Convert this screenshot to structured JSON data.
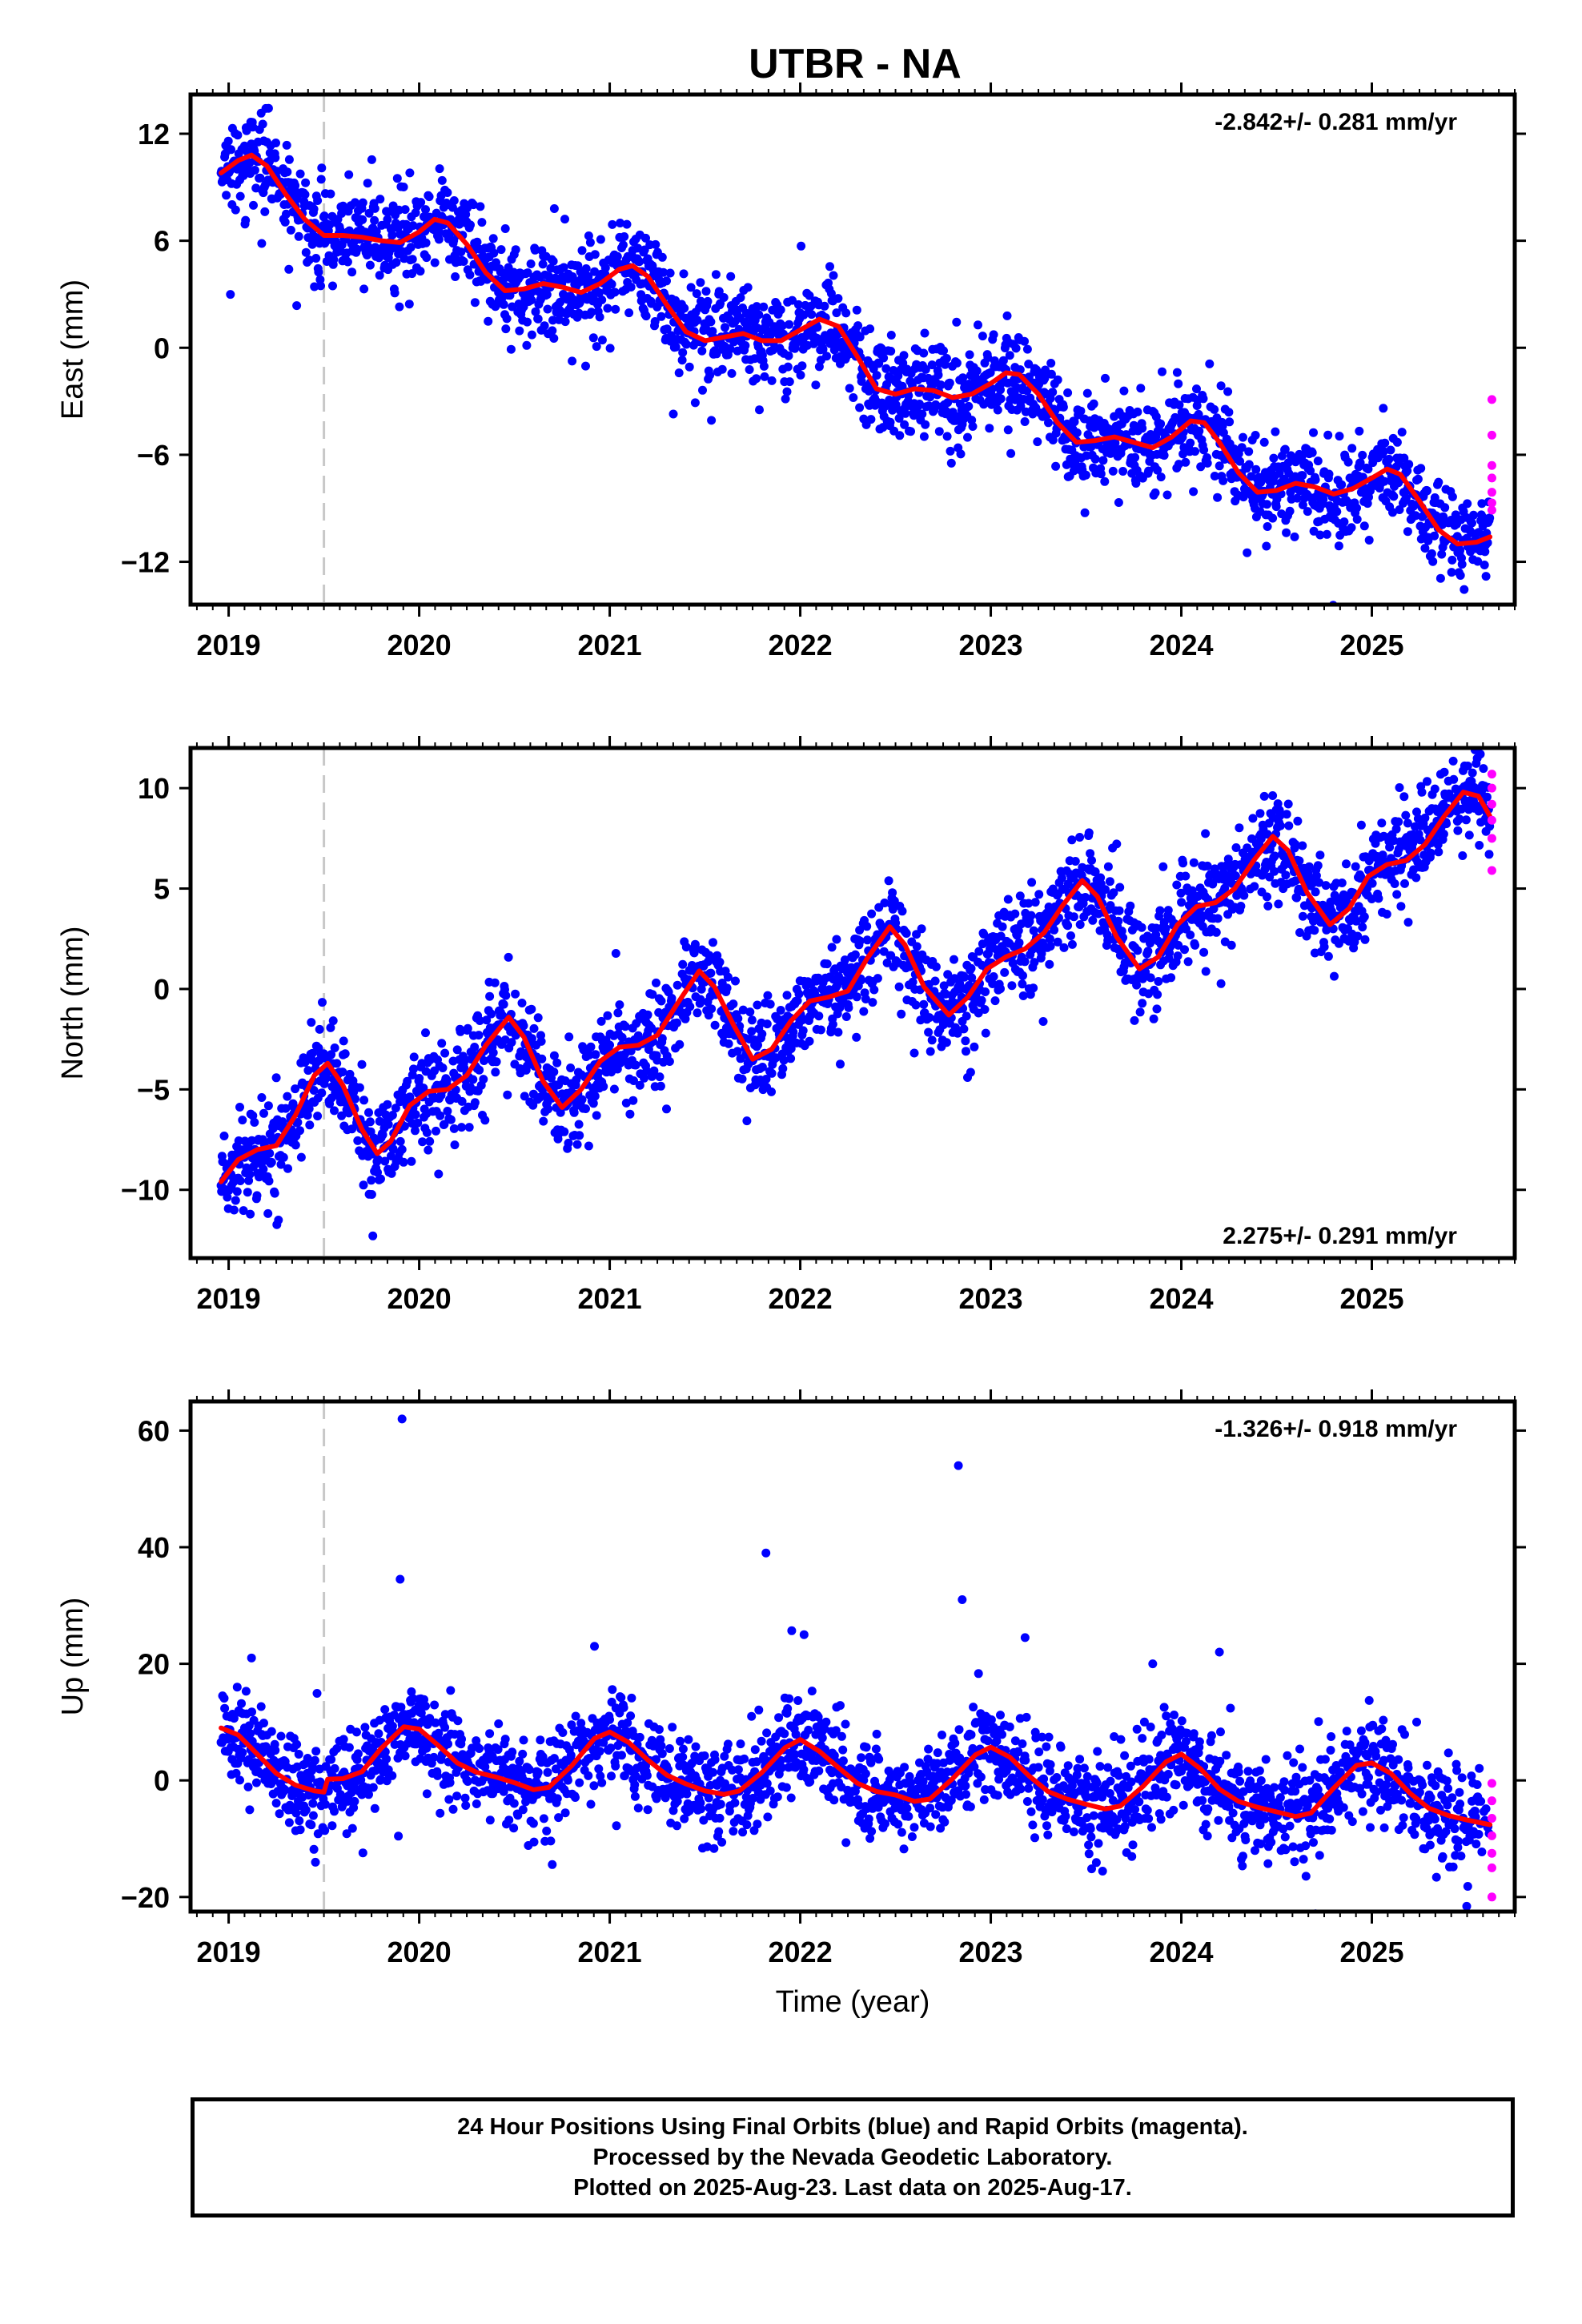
{
  "title": "UTBR - NA",
  "colors": {
    "final_orbits": "#0000ff",
    "rapid_orbits": "#ff00ff",
    "model_fit": "#ff0000",
    "reference_line": "#c8c8c8",
    "axes": "#000000"
  },
  "footer": {
    "line1": "24 Hour Positions Using Final Orbits (blue) and Rapid Orbits (magenta).",
    "line2": "Processed by the Nevada Geodetic Laboratory.",
    "line3": "Plotted on 2025-Aug-23. Last data on 2025-Aug-17."
  },
  "chart_data": [
    {
      "type": "scatter",
      "name": "East",
      "ylabel": "East (mm)",
      "xlabel": "",
      "rate_label": "-2.842+/- 0.281 mm/yr",
      "rate_position": "top-right",
      "xlim": [
        2018.8,
        2025.75
      ],
      "ylim": [
        -14.4,
        14.2
      ],
      "x_ticks": [
        2019,
        2020,
        2021,
        2022,
        2023,
        2024,
        2025
      ],
      "y_ticks": [
        -12,
        -6,
        0,
        6,
        12
      ],
      "y_tick_labels": [
        "−12",
        "−6",
        "0",
        "6",
        "12"
      ],
      "reference_line_x": 2019.5,
      "series": [
        {
          "name": "model fit",
          "kind": "line",
          "points": [
            [
              2018.96,
              9.8
            ],
            [
              2019.05,
              10.5
            ],
            [
              2019.12,
              10.8
            ],
            [
              2019.2,
              10.2
            ],
            [
              2019.3,
              8.6
            ],
            [
              2019.4,
              7.2
            ],
            [
              2019.5,
              6.3
            ],
            [
              2019.6,
              6.3
            ],
            [
              2019.7,
              6.2
            ],
            [
              2019.8,
              6.0
            ],
            [
              2019.9,
              5.9
            ],
            [
              2020.0,
              6.5
            ],
            [
              2020.08,
              7.2
            ],
            [
              2020.15,
              7.0
            ],
            [
              2020.25,
              5.8
            ],
            [
              2020.35,
              4.2
            ],
            [
              2020.45,
              3.2
            ],
            [
              2020.55,
              3.3
            ],
            [
              2020.65,
              3.6
            ],
            [
              2020.75,
              3.4
            ],
            [
              2020.85,
              3.1
            ],
            [
              2020.95,
              3.6
            ],
            [
              2021.05,
              4.4
            ],
            [
              2021.12,
              4.6
            ],
            [
              2021.2,
              4.0
            ],
            [
              2021.3,
              2.4
            ],
            [
              2021.4,
              0.9
            ],
            [
              2021.5,
              0.4
            ],
            [
              2021.6,
              0.6
            ],
            [
              2021.7,
              0.8
            ],
            [
              2021.8,
              0.4
            ],
            [
              2021.9,
              0.4
            ],
            [
              2022.0,
              1.0
            ],
            [
              2022.1,
              1.6
            ],
            [
              2022.2,
              1.2
            ],
            [
              2022.3,
              -0.5
            ],
            [
              2022.4,
              -2.3
            ],
            [
              2022.5,
              -2.6
            ],
            [
              2022.6,
              -2.3
            ],
            [
              2022.7,
              -2.4
            ],
            [
              2022.8,
              -2.8
            ],
            [
              2022.9,
              -2.6
            ],
            [
              2023.0,
              -2.0
            ],
            [
              2023.08,
              -1.4
            ],
            [
              2023.15,
              -1.5
            ],
            [
              2023.25,
              -2.6
            ],
            [
              2023.35,
              -4.2
            ],
            [
              2023.45,
              -5.3
            ],
            [
              2023.55,
              -5.2
            ],
            [
              2023.65,
              -5.0
            ],
            [
              2023.75,
              -5.3
            ],
            [
              2023.85,
              -5.6
            ],
            [
              2023.95,
              -5.0
            ],
            [
              2024.05,
              -4.1
            ],
            [
              2024.12,
              -4.2
            ],
            [
              2024.2,
              -5.3
            ],
            [
              2024.3,
              -7.0
            ],
            [
              2024.4,
              -8.1
            ],
            [
              2024.5,
              -8.0
            ],
            [
              2024.6,
              -7.6
            ],
            [
              2024.7,
              -7.8
            ],
            [
              2024.8,
              -8.2
            ],
            [
              2024.9,
              -7.9
            ],
            [
              2025.0,
              -7.3
            ],
            [
              2025.08,
              -6.8
            ],
            [
              2025.15,
              -7.1
            ],
            [
              2025.25,
              -8.6
            ],
            [
              2025.35,
              -10.2
            ],
            [
              2025.45,
              -11.0
            ],
            [
              2025.55,
              -10.9
            ],
            [
              2025.62,
              -10.6
            ]
          ]
        }
      ],
      "scatter_trend": {
        "description": "daily positions scattered around model fit",
        "x_start": 2018.96,
        "x_end": 2025.62,
        "scatter_sd_mm": 1.3
      },
      "rapid_points": [
        [
          2025.63,
          -2.9
        ],
        [
          2025.63,
          -4.9
        ],
        [
          2025.63,
          -6.6
        ],
        [
          2025.63,
          -7.3
        ],
        [
          2025.63,
          -8.1
        ],
        [
          2025.63,
          -8.7
        ],
        [
          2025.63,
          -9.1
        ]
      ]
    },
    {
      "type": "scatter",
      "name": "North",
      "ylabel": "North (mm)",
      "xlabel": "",
      "rate_label": "2.275+/- 0.291 mm/yr",
      "rate_position": "bottom-right",
      "xlim": [
        2018.8,
        2025.75
      ],
      "ylim": [
        -13.4,
        12.0
      ],
      "x_ticks": [
        2019,
        2020,
        2021,
        2022,
        2023,
        2024,
        2025
      ],
      "y_ticks": [
        -10,
        -5,
        0,
        5,
        10
      ],
      "y_tick_labels": [
        "−10",
        "−5",
        "0",
        "5",
        "10"
      ],
      "reference_line_x": 2019.5,
      "series": [
        {
          "name": "model fit",
          "kind": "line",
          "points": [
            [
              2018.96,
              -9.6
            ],
            [
              2019.05,
              -8.5
            ],
            [
              2019.15,
              -8.0
            ],
            [
              2019.25,
              -7.8
            ],
            [
              2019.35,
              -6.3
            ],
            [
              2019.45,
              -4.3
            ],
            [
              2019.52,
              -3.7
            ],
            [
              2019.6,
              -4.8
            ],
            [
              2019.7,
              -7.0
            ],
            [
              2019.78,
              -8.2
            ],
            [
              2019.85,
              -7.6
            ],
            [
              2019.95,
              -5.8
            ],
            [
              2020.05,
              -5.1
            ],
            [
              2020.15,
              -5.0
            ],
            [
              2020.25,
              -4.3
            ],
            [
              2020.35,
              -2.8
            ],
            [
              2020.47,
              -1.4
            ],
            [
              2020.55,
              -2.4
            ],
            [
              2020.65,
              -4.6
            ],
            [
              2020.75,
              -5.9
            ],
            [
              2020.85,
              -5.0
            ],
            [
              2020.95,
              -3.6
            ],
            [
              2021.05,
              -2.9
            ],
            [
              2021.15,
              -2.8
            ],
            [
              2021.25,
              -2.3
            ],
            [
              2021.35,
              -0.8
            ],
            [
              2021.47,
              0.9
            ],
            [
              2021.55,
              0.1
            ],
            [
              2021.65,
              -1.8
            ],
            [
              2021.75,
              -3.5
            ],
            [
              2021.85,
              -3.0
            ],
            [
              2021.95,
              -1.6
            ],
            [
              2022.05,
              -0.6
            ],
            [
              2022.15,
              -0.4
            ],
            [
              2022.25,
              -0.1
            ],
            [
              2022.35,
              1.5
            ],
            [
              2022.47,
              3.1
            ],
            [
              2022.55,
              2.2
            ],
            [
              2022.65,
              0.1
            ],
            [
              2022.78,
              -1.3
            ],
            [
              2022.88,
              -0.4
            ],
            [
              2022.98,
              1.0
            ],
            [
              2023.08,
              1.6
            ],
            [
              2023.18,
              2.0
            ],
            [
              2023.28,
              2.8
            ],
            [
              2023.38,
              4.2
            ],
            [
              2023.48,
              5.4
            ],
            [
              2023.56,
              4.6
            ],
            [
              2023.66,
              2.6
            ],
            [
              2023.78,
              1.0
            ],
            [
              2023.88,
              1.6
            ],
            [
              2023.98,
              3.2
            ],
            [
              2024.08,
              4.1
            ],
            [
              2024.18,
              4.3
            ],
            [
              2024.28,
              5.0
            ],
            [
              2024.38,
              6.4
            ],
            [
              2024.48,
              7.6
            ],
            [
              2024.56,
              6.9
            ],
            [
              2024.66,
              4.8
            ],
            [
              2024.78,
              3.2
            ],
            [
              2024.88,
              4.0
            ],
            [
              2024.98,
              5.6
            ],
            [
              2025.08,
              6.2
            ],
            [
              2025.18,
              6.4
            ],
            [
              2025.28,
              7.2
            ],
            [
              2025.38,
              8.6
            ],
            [
              2025.48,
              9.8
            ],
            [
              2025.56,
              9.6
            ],
            [
              2025.62,
              8.6
            ]
          ]
        }
      ],
      "scatter_trend": {
        "description": "daily positions scattered around model fit",
        "x_start": 2018.96,
        "x_end": 2025.62,
        "scatter_sd_mm": 1.2
      },
      "rapid_points": [
        [
          2025.63,
          10.7
        ],
        [
          2025.63,
          10.0
        ],
        [
          2025.63,
          9.2
        ],
        [
          2025.63,
          8.4
        ],
        [
          2025.63,
          7.5
        ],
        [
          2025.63,
          5.9
        ]
      ]
    },
    {
      "type": "scatter",
      "name": "Up",
      "ylabel": "Up (mm)",
      "xlabel": "Time (year)",
      "rate_label": "-1.326+/- 0.918 mm/yr",
      "rate_position": "top-right",
      "xlim": [
        2018.8,
        2025.75
      ],
      "ylim": [
        -22.5,
        65.0
      ],
      "x_ticks": [
        2019,
        2020,
        2021,
        2022,
        2023,
        2024,
        2025
      ],
      "y_ticks": [
        -20,
        0,
        20,
        40,
        60
      ],
      "y_tick_labels": [
        "−20",
        "0",
        "20",
        "40",
        "60"
      ],
      "reference_line_x": 2019.5,
      "series": [
        {
          "name": "model fit",
          "kind": "line",
          "points": [
            [
              2018.96,
              9.0
            ],
            [
              2019.05,
              7.8
            ],
            [
              2019.15,
              4.5
            ],
            [
              2019.25,
              1.2
            ],
            [
              2019.35,
              -0.8
            ],
            [
              2019.45,
              -1.8
            ],
            [
              2019.5,
              -2.0
            ],
            [
              2019.52,
              0.2
            ],
            [
              2019.6,
              0.3
            ],
            [
              2019.7,
              1.5
            ],
            [
              2019.8,
              5.5
            ],
            [
              2019.92,
              9.2
            ],
            [
              2020.0,
              8.8
            ],
            [
              2020.1,
              6.0
            ],
            [
              2020.2,
              3.0
            ],
            [
              2020.3,
              1.4
            ],
            [
              2020.4,
              0.6
            ],
            [
              2020.5,
              -0.4
            ],
            [
              2020.6,
              -1.6
            ],
            [
              2020.68,
              -1.2
            ],
            [
              2020.8,
              2.5
            ],
            [
              2020.92,
              7.2
            ],
            [
              2021.0,
              8.3
            ],
            [
              2021.1,
              6.5
            ],
            [
              2021.2,
              3.5
            ],
            [
              2021.3,
              0.9
            ],
            [
              2021.4,
              -0.6
            ],
            [
              2021.5,
              -1.8
            ],
            [
              2021.6,
              -2.4
            ],
            [
              2021.68,
              -1.8
            ],
            [
              2021.8,
              1.4
            ],
            [
              2021.92,
              5.6
            ],
            [
              2022.0,
              7.0
            ],
            [
              2022.1,
              5.0
            ],
            [
              2022.2,
              2.2
            ],
            [
              2022.3,
              -0.5
            ],
            [
              2022.4,
              -1.9
            ],
            [
              2022.5,
              -2.5
            ],
            [
              2022.6,
              -3.6
            ],
            [
              2022.68,
              -3.2
            ],
            [
              2022.8,
              0.3
            ],
            [
              2022.92,
              4.4
            ],
            [
              2023.0,
              5.7
            ],
            [
              2023.1,
              4.0
            ],
            [
              2023.2,
              0.8
            ],
            [
              2023.3,
              -1.9
            ],
            [
              2023.4,
              -3.2
            ],
            [
              2023.5,
              -4.1
            ],
            [
              2023.6,
              -4.9
            ],
            [
              2023.68,
              -4.4
            ],
            [
              2023.8,
              -1.0
            ],
            [
              2023.92,
              3.2
            ],
            [
              2024.0,
              4.5
            ],
            [
              2024.1,
              2.0
            ],
            [
              2024.2,
              -1.5
            ],
            [
              2024.3,
              -3.6
            ],
            [
              2024.4,
              -4.6
            ],
            [
              2024.5,
              -5.4
            ],
            [
              2024.6,
              -6.2
            ],
            [
              2024.68,
              -5.6
            ],
            [
              2024.8,
              -1.3
            ],
            [
              2024.92,
              2.6
            ],
            [
              2025.0,
              3.0
            ],
            [
              2025.1,
              1.2
            ],
            [
              2025.2,
              -2.2
            ],
            [
              2025.3,
              -4.8
            ],
            [
              2025.4,
              -6.0
            ],
            [
              2025.5,
              -6.8
            ],
            [
              2025.62,
              -7.6
            ]
          ]
        }
      ],
      "scatter_trend": {
        "description": "daily positions scattered around model fit",
        "x_start": 2018.96,
        "x_end": 2025.62,
        "scatter_sd_mm": 4.0
      },
      "outliers": [
        [
          2019.91,
          62.0
        ],
        [
          2019.9,
          34.5
        ],
        [
          2022.83,
          54.0
        ],
        [
          2022.85,
          31.0
        ],
        [
          2021.82,
          39.0
        ],
        [
          2022.02,
          25.0
        ],
        [
          2023.18,
          24.5
        ],
        [
          2024.2,
          22.0
        ],
        [
          2020.92,
          23.0
        ],
        [
          2019.12,
          21.0
        ],
        [
          2023.85,
          20.0
        ]
      ],
      "rapid_points": [
        [
          2025.63,
          -0.5
        ],
        [
          2025.63,
          -3.5
        ],
        [
          2025.63,
          -6.5
        ],
        [
          2025.63,
          -9.5
        ],
        [
          2025.63,
          -12.5
        ],
        [
          2025.63,
          -15.0
        ],
        [
          2025.63,
          -20.0
        ]
      ]
    }
  ]
}
